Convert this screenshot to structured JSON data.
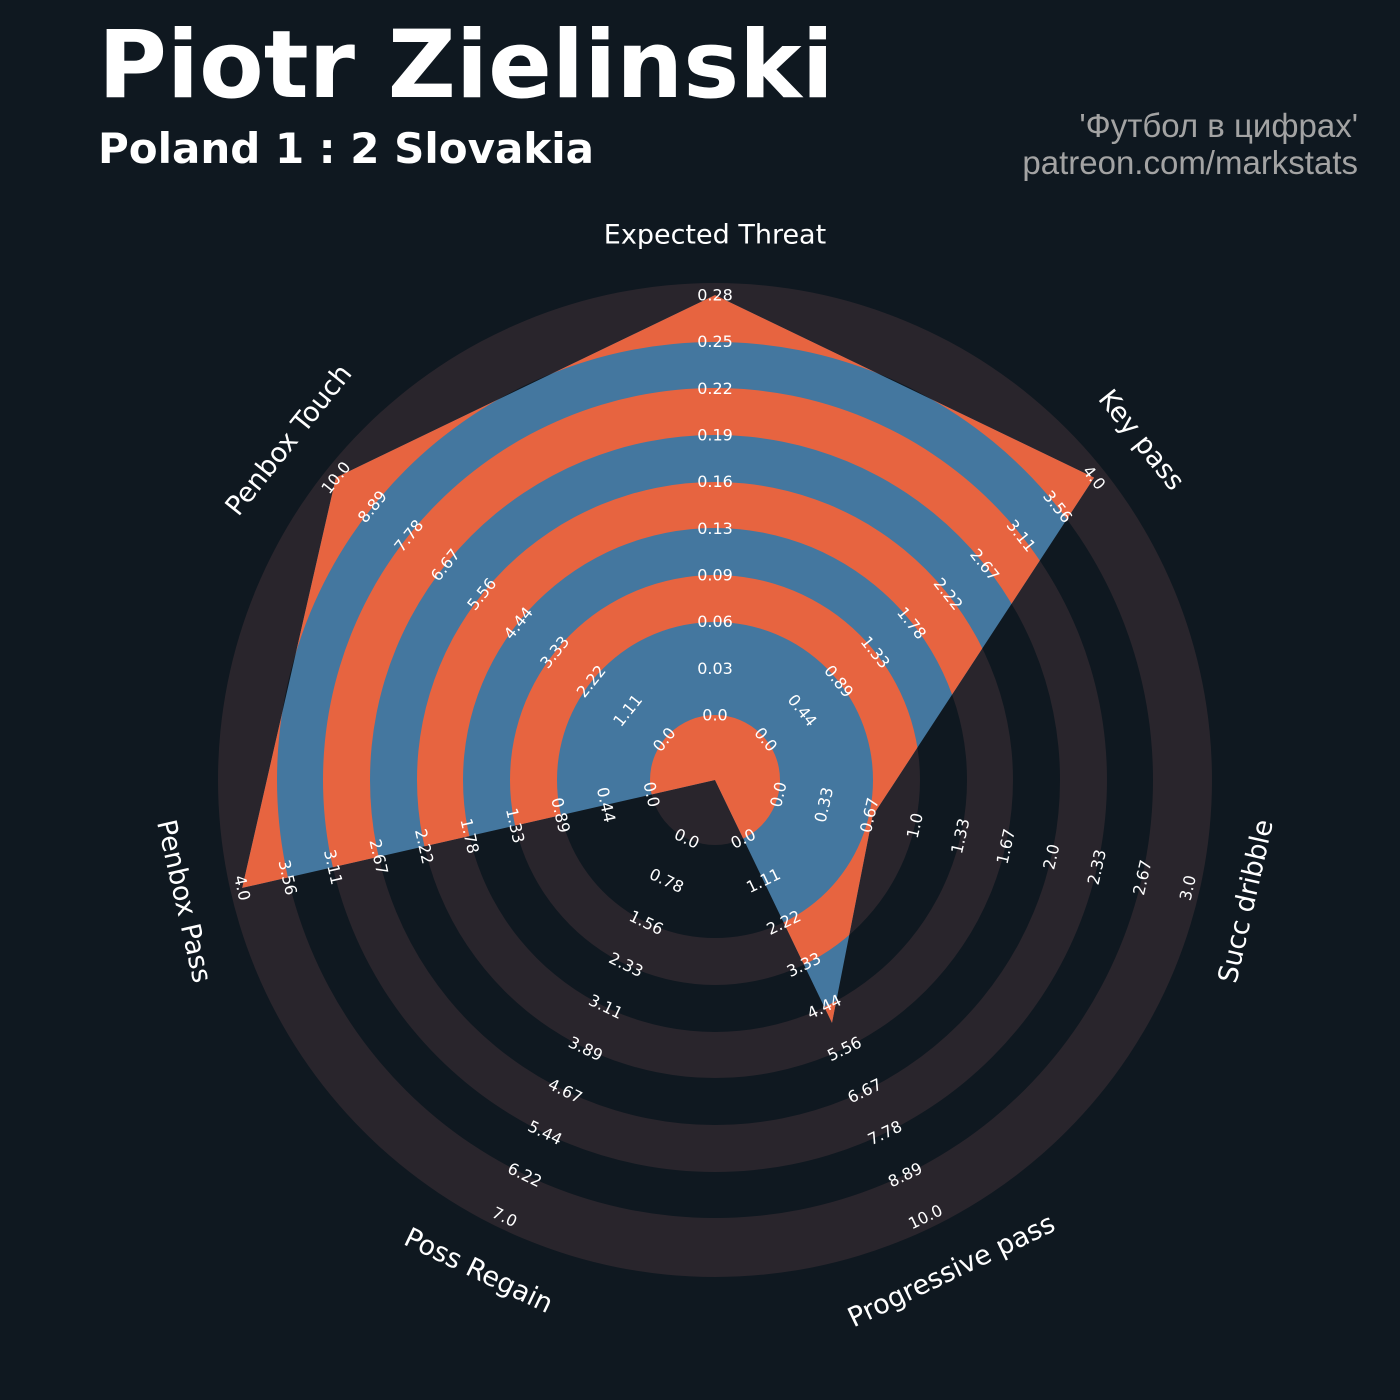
{
  "title": "Piotr Zielinski",
  "subtitle": "Poland 1 : 2 Slovakia",
  "credit": {
    "line1": "'Футбол в цифрах'",
    "line2": "patreon.com/markstats"
  },
  "colors": {
    "background": "#0f1820",
    "ring_dark": "#29252c",
    "ring_accent": "#e76440",
    "fill": "#44779f",
    "text": "#ffffff",
    "credit_text": "#a3a3a3"
  },
  "chart_data": {
    "type": "radar",
    "metrics": [
      {
        "label": "Expected Threat",
        "min": 0.0,
        "max": 0.28,
        "value": 0.28,
        "ticks": [
          "0.0",
          "0.03",
          "0.06",
          "0.09",
          "0.13",
          "0.16",
          "0.19",
          "0.22",
          "0.25",
          "0.28"
        ]
      },
      {
        "label": "Key pass",
        "min": 0.0,
        "max": 4.0,
        "value": 4.0,
        "ticks": [
          "0.0",
          "0.44",
          "0.89",
          "1.33",
          "1.78",
          "2.22",
          "2.67",
          "3.11",
          "3.56",
          "4.0"
        ]
      },
      {
        "label": "Succ dribble",
        "min": 0.0,
        "max": 3.0,
        "value": 1.0,
        "ticks": [
          "0.0",
          "0.33",
          "0.67",
          "1.0",
          "1.33",
          "1.67",
          "2.0",
          "2.33",
          "2.67",
          "3.0"
        ]
      },
      {
        "label": "Progressive pass",
        "min": 0.0,
        "max": 10.0,
        "value": 5.56,
        "ticks": [
          "0.0",
          "1.11",
          "2.22",
          "3.33",
          "4.44",
          "5.56",
          "6.67",
          "7.78",
          "8.89",
          "10.0"
        ]
      },
      {
        "label": "Poss Regain",
        "min": 0.0,
        "max": 7.0,
        "value": 0.0,
        "ticks": [
          "0.0",
          "0.78",
          "1.56",
          "2.33",
          "3.11",
          "3.89",
          "4.67",
          "5.44",
          "6.22",
          "7.0"
        ]
      },
      {
        "label": "Penbox Pass",
        "min": 0.0,
        "max": 4.0,
        "value": 4.0,
        "ticks": [
          "0.0",
          "0.44",
          "0.89",
          "1.33",
          "1.78",
          "2.22",
          "2.67",
          "3.11",
          "3.56",
          "4.0"
        ]
      },
      {
        "label": "Penbox Touch",
        "min": 0.0,
        "max": 10.0,
        "value": 10.0,
        "ticks": [
          "0.0",
          "1.11",
          "2.22",
          "3.33",
          "4.44",
          "5.56",
          "6.67",
          "7.78",
          "8.89",
          "10.0"
        ]
      }
    ]
  }
}
